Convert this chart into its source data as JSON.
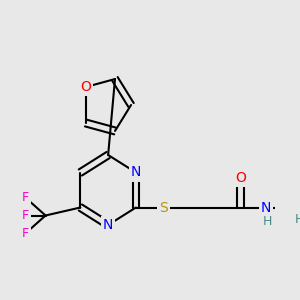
{
  "bg_color": "#e8e8e8",
  "bond_color": "#000000",
  "bond_width": 1.5,
  "atom_colors": {
    "O": "#ff0000",
    "N": "#0000ff",
    "S": "#b8960a",
    "F": "#ff00cc",
    "H": "#4a8a8a",
    "C": "#000000"
  },
  "font_size": 9,
  "fig_size": [
    3.0,
    3.0
  ],
  "dpi": 100,
  "xlim": [
    0,
    300
  ],
  "ylim": [
    0,
    300
  ]
}
